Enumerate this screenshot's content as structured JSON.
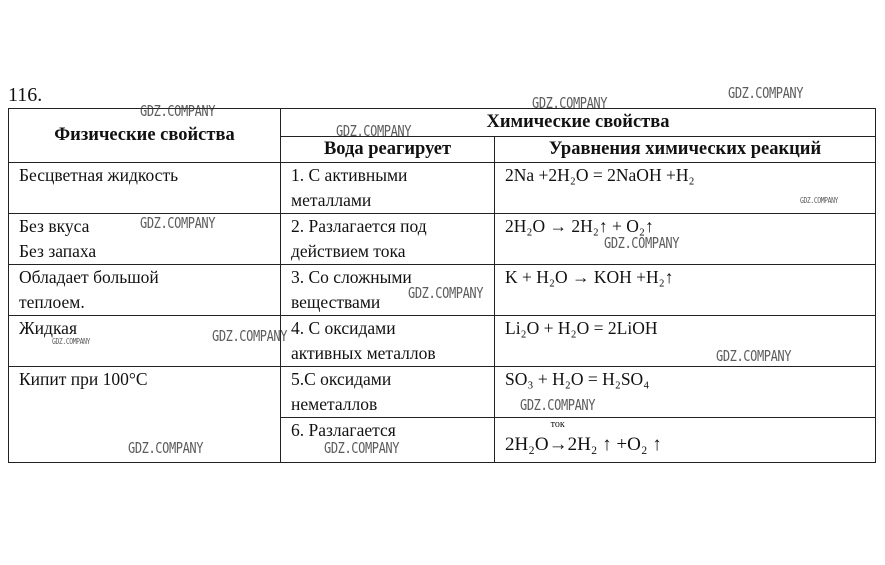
{
  "problem_number": "116.",
  "headers": {
    "physical": "Физические свойства",
    "chemical": "Химические свойства",
    "water_reacts": "Вода реагирует",
    "equations": "Уравнения химических реакций"
  },
  "physical": [
    "Бесцветная жидкость",
    "Без вкуса",
    "Без запаха",
    "Обладает большой",
    "теплоем.",
    "Жидкая",
    "Кипит при 100°С"
  ],
  "reactions": [
    {
      "line1": "1. С активными",
      "line2": "металлами",
      "equation": "2Na +2H₂O = 2NaOH +H₂"
    },
    {
      "line1": "2. Разлагается под",
      "line2": "действием тока",
      "equation": "2H₂O → 2H₂↑ + O₂↑"
    },
    {
      "line1": "3. Со сложными",
      "line2": "веществами",
      "equation": "K + H₂O → KOH +H₂↑"
    },
    {
      "line1": "4. С оксидами",
      "line2": "активных металлов",
      "equation": "Li₂O + H₂O = 2LiOH"
    },
    {
      "line1": "5.С оксидами",
      "line2": "неметаллов",
      "equation": "SO₃ + H₂O = H₂SO₄"
    },
    {
      "line1": "6. Разлагается",
      "eq_left": "2H₂O",
      "eq_arrow": "→",
      "eq_condition": "ток",
      "eq_right": "2H₂ ↑ +O₂ ↑"
    }
  ],
  "watermark": "GDZ.COMPANY"
}
